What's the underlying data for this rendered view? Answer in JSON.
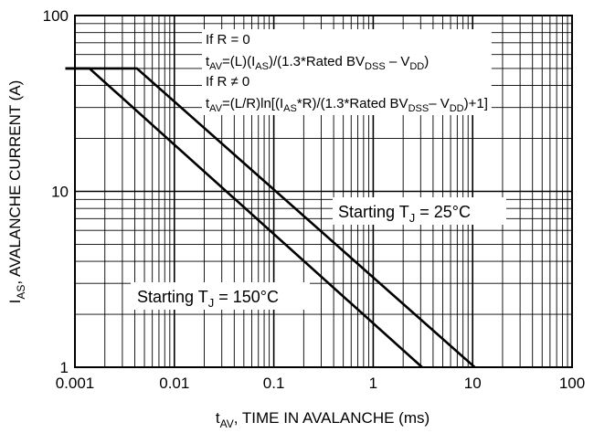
{
  "chart_data": {
    "type": "line",
    "x_scale": "log",
    "y_scale": "log",
    "xlim": [
      0.001,
      100
    ],
    "ylim": [
      1,
      100
    ],
    "grid": true,
    "xlabel_main": "t",
    "xlabel_sub": "AV",
    "xlabel_rest": ", TIME IN AVALANCHE (ms)",
    "ylabel_main": "I",
    "ylabel_sub": "AS",
    "ylabel_rest": ", AVALANCHE CURRENT (A)",
    "x_ticks": [
      {
        "value": 0.001,
        "label": "0.001"
      },
      {
        "value": 0.01,
        "label": "0.01"
      },
      {
        "value": 0.1,
        "label": "0.1"
      },
      {
        "value": 1,
        "label": "1"
      },
      {
        "value": 10,
        "label": "10"
      },
      {
        "value": 100,
        "label": "100"
      }
    ],
    "y_ticks": [
      {
        "value": 1,
        "label": "1"
      },
      {
        "value": 10,
        "label": "10"
      },
      {
        "value": 100,
        "label": "100"
      }
    ],
    "series": [
      {
        "label_main": "Starting T",
        "label_sub": "J",
        "label_rest": " = 25°C",
        "x": [
          0.0008,
          0.0042,
          10.5
        ],
        "y": [
          50,
          50,
          1
        ]
      },
      {
        "label_main": "Starting T",
        "label_sub": "J",
        "label_rest": " = 150°C",
        "x": [
          0.0008,
          0.0014,
          3.1
        ],
        "y": [
          50,
          50,
          1
        ]
      }
    ],
    "annotations": {
      "line1": "If R = 0",
      "line2_a": "t",
      "line2_a_sub": "AV",
      "line2_b": "=(L)(I",
      "line2_b_sub": "AS",
      "line2_c": ")/(1.3*Rated BV",
      "line2_c_sub": "DSS",
      "line2_d": " – V",
      "line2_d_sub": "DD",
      "line2_e": ")",
      "line3": "If R ≠ 0",
      "line4_a": "t",
      "line4_a_sub": "AV",
      "line4_b": "=(L/R)ln[(I",
      "line4_b_sub": "AS",
      "line4_c": "*R)/(1.3*Rated BV",
      "line4_c_sub": "DSS",
      "line4_d": "– V",
      "line4_d_sub": "DD",
      "line4_e": ")+1]"
    },
    "colors": {
      "line": "#000000",
      "grid": "#000000",
      "background": "#ffffff"
    }
  }
}
